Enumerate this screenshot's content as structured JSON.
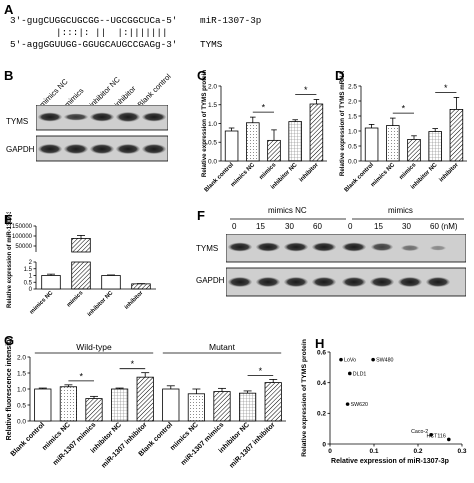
{
  "panels": {
    "A": {
      "label": "A",
      "line1_seq": "3'-gugCUGGCUGCGG--UGCGGCUCa-5'",
      "line1_name": "miR-1307-3p",
      "pairing": "|:::|: ||  |:|||||||",
      "line2_seq": "5'-aggGGUUGG-GGUGCAUGCCGAGg-3'",
      "line2_name": "TYMS"
    },
    "B": {
      "label": "B",
      "lanes": [
        "mimics NC",
        "mimics",
        "inhibitor NC",
        "inhibitor",
        "Blank control"
      ],
      "rows": [
        "TYMS",
        "GAPDH"
      ]
    },
    "F": {
      "label": "F",
      "groups": [
        "mimics NC",
        "mimics"
      ],
      "doses": [
        "0",
        "15",
        "30",
        "60",
        "0",
        "15",
        "30",
        "60 (nM)"
      ],
      "rows": [
        "TYMS",
        "GAPDH"
      ]
    },
    "C": {
      "label": "C"
    },
    "D": {
      "label": "D"
    },
    "E": {
      "label": "E"
    },
    "G": {
      "label": "G"
    },
    "H": {
      "label": "H"
    }
  },
  "chart_data": [
    {
      "id": "C",
      "type": "bar",
      "categories": [
        "Blank control",
        "mimics NC",
        "mimics",
        "inhibitor NC",
        "inhibitor"
      ],
      "values": [
        0.8,
        1.02,
        0.55,
        1.05,
        1.52
      ],
      "errors": [
        0.08,
        0.15,
        0.28,
        0.05,
        0.12
      ],
      "ylabel": "Relative expression of TYMS protein",
      "ylim": [
        0,
        2.0
      ],
      "yticks": [
        0.0,
        0.5,
        1.0,
        1.5,
        2.0
      ],
      "sig_label": "*",
      "significance": [
        [
          1,
          2
        ],
        [
          3,
          4
        ]
      ]
    },
    {
      "id": "D",
      "type": "bar",
      "categories": [
        "Blank control",
        "mimics NC",
        "mimics",
        "inhibitor NC",
        "inhibitor"
      ],
      "values": [
        1.1,
        1.18,
        0.72,
        0.98,
        1.72
      ],
      "errors": [
        0.12,
        0.25,
        0.12,
        0.1,
        0.4
      ],
      "ylabel": "Relative expression of TYMS mRNA",
      "ylim": [
        0,
        2.5
      ],
      "yticks": [
        0.0,
        0.5,
        1.0,
        1.5,
        2.0,
        2.5
      ],
      "sig_label": "*",
      "significance": [
        [
          1,
          2
        ],
        [
          3,
          4
        ]
      ]
    },
    {
      "id": "E",
      "type": "bar",
      "categories": [
        "mimics NC",
        "mimics",
        "inhibitor NC",
        "inhibitor"
      ],
      "values": [
        1.0,
        88000,
        1.0,
        0.38
      ],
      "errors": [
        0.1,
        15000,
        0.04,
        0.02
      ],
      "ylabel": "Relative expression of miR-1307-3p",
      "axis_break": true,
      "lower_ticks": [
        "0",
        "0.5",
        "1",
        "1.5",
        "2"
      ],
      "upper_ticks": [
        "50000",
        "100000",
        "150000"
      ]
    },
    {
      "id": "G",
      "type": "bar",
      "categories": [
        "Blank control",
        "mimics NC",
        "miR-1307 mimics",
        "inhibitor NC",
        "miR-1307 inhibitor",
        "Blank control",
        "mimics NC",
        "miR-1307 mimics",
        "inhibitor NC",
        "miR-1307 inhibitor"
      ],
      "values": [
        1.0,
        1.07,
        0.7,
        1.0,
        1.37,
        1.0,
        0.85,
        0.92,
        0.87,
        1.2
      ],
      "errors": [
        0.03,
        0.06,
        0.07,
        0.03,
        0.14,
        0.1,
        0.15,
        0.1,
        0.07,
        0.1
      ],
      "groups": [
        "Wild-type",
        "Mutant"
      ],
      "ylabel": "Relative fluorescence intensity",
      "ylim": [
        0,
        2.0
      ],
      "yticks": [
        0.0,
        0.5,
        1.0,
        1.5,
        2.0
      ],
      "sig_label": "*",
      "significance": [
        [
          1,
          2
        ],
        [
          3,
          4
        ],
        [
          8,
          9
        ]
      ]
    },
    {
      "id": "H",
      "type": "scatter",
      "points": [
        {
          "label": "LoVo",
          "x": 0.025,
          "y": 0.55
        },
        {
          "label": "SW480",
          "x": 0.098,
          "y": 0.55
        },
        {
          "label": "DLD1",
          "x": 0.045,
          "y": 0.46
        },
        {
          "label": "SW620",
          "x": 0.04,
          "y": 0.26
        },
        {
          "label": "Caco-2",
          "x": 0.23,
          "y": 0.06
        },
        {
          "label": "HCT116",
          "x": 0.27,
          "y": 0.03
        }
      ],
      "xlabel": "Relative expression of miR-1307-3p",
      "ylabel": "Relative expression of TYMS protein",
      "xlim": [
        0,
        0.3
      ],
      "ylim": [
        0,
        0.6
      ],
      "xticks": [
        "0",
        "0.1",
        "0.2",
        "0.3"
      ],
      "yticks": [
        "0",
        "0.2",
        "0.4",
        "0.6"
      ]
    }
  ]
}
